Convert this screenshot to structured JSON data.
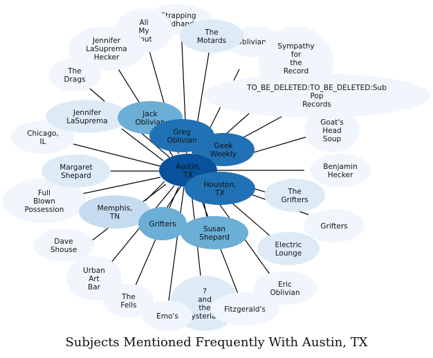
{
  "caption": "Subjects Mentioned Frequently With Austin, TX",
  "colors": {
    "hub": "#08519c",
    "strong": "#2171b5",
    "medium": "#6baed6",
    "light": "#c6dbef",
    "pale": "#deebf7",
    "faint": "#f1f6fd",
    "edge": "#000000"
  },
  "center": {
    "id": "austin",
    "label": "Austin,\nTX",
    "weight": "hub"
  },
  "nodes": [
    {
      "id": "strapping",
      "label": "Strapping\nFieldhands",
      "weight": "faint"
    },
    {
      "id": "all-my-pout",
      "label": "All\nMy\nPout",
      "weight": "faint"
    },
    {
      "id": "jennifer-lasuprema-hecker",
      "label": "Jennifer\nLaSuprema\nHecker",
      "weight": "faint"
    },
    {
      "id": "the-drags",
      "label": "The\nDrags",
      "weight": "faint"
    },
    {
      "id": "the-motards",
      "label": "The\nMotards",
      "weight": "pale"
    },
    {
      "id": "oblivians",
      "label": "Oblivians",
      "weight": "faint"
    },
    {
      "id": "sympathy",
      "label": "Sympathy\nfor\nthe\nRecord\nIndustry",
      "weight": "faint"
    },
    {
      "id": "sub-pop",
      "label": "TO_BE_DELETED:TO_BE_DELETED:Sub\nPop\nRecords",
      "weight": "faint"
    },
    {
      "id": "jennifer-lasuprema",
      "label": "Jennifer\nLaSuprema",
      "weight": "pale"
    },
    {
      "id": "jack-oblivian",
      "label": "Jack\nOblivian",
      "weight": "medium"
    },
    {
      "id": "greg-oblivian",
      "label": "Greg\nOblivian",
      "weight": "strong"
    },
    {
      "id": "geek-weekly",
      "label": "Geek\nWeekly",
      "weight": "strong"
    },
    {
      "id": "goats-head-soup",
      "label": "Goat's\nHead\nSoup",
      "weight": "faint"
    },
    {
      "id": "chicago",
      "label": "Chicago,\nIL",
      "weight": "faint"
    },
    {
      "id": "margaret-shepard",
      "label": "Margaret\nShepard",
      "weight": "pale"
    },
    {
      "id": "benjamin-hecker",
      "label": "Benjamin\nHecker",
      "weight": "faint"
    },
    {
      "id": "houston",
      "label": "Houston,\nTX",
      "weight": "strong"
    },
    {
      "id": "the-grifters",
      "label": "The\nGrifters",
      "weight": "pale"
    },
    {
      "id": "full-blown",
      "label": "Full\nBlown\nPossession",
      "weight": "faint"
    },
    {
      "id": "memphis",
      "label": "Memphis,\nTN",
      "weight": "light"
    },
    {
      "id": "grifters-right",
      "label": "Grifters",
      "weight": "faint"
    },
    {
      "id": "grifters-mid",
      "label": "Grifters",
      "weight": "medium"
    },
    {
      "id": "susan-shepard",
      "label": "Susan\nShepard",
      "weight": "medium"
    },
    {
      "id": "dave-shouse",
      "label": "Dave\nShouse",
      "weight": "faint"
    },
    {
      "id": "electric-lounge",
      "label": "Electric\nLounge",
      "weight": "pale"
    },
    {
      "id": "urban-art-bar",
      "label": "Urban\nArt\nBar",
      "weight": "faint"
    },
    {
      "id": "eric-oblivian",
      "label": "Eric\nOblivian",
      "weight": "faint"
    },
    {
      "id": "the-fells",
      "label": "The\nFells",
      "weight": "faint"
    },
    {
      "id": "mysterians",
      "label": "?\nand\nthe\nMysterians",
      "weight": "pale"
    },
    {
      "id": "fitzgeralds",
      "label": "Fitzgerald's",
      "weight": "faint"
    },
    {
      "id": "emos",
      "label": "Emo's",
      "weight": "faint"
    }
  ]
}
